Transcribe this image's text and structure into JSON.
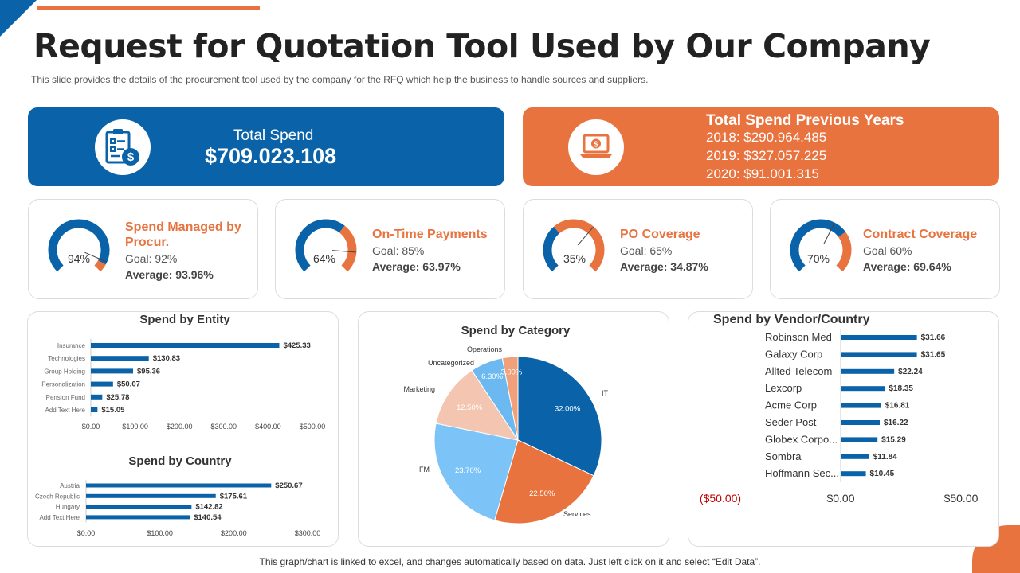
{
  "header": {
    "title": "Request for Quotation Tool Used by Our Company",
    "subtitle": "This slide provides the details of the procurement tool used by the company for the RFQ which help the business to handle sources and suppliers."
  },
  "total_spend": {
    "label": "Total Spend",
    "value": "$709.023.108",
    "icon": "clipboard-dollar-icon"
  },
  "previous_years": {
    "title": "Total Spend Previous Years",
    "lines": [
      "2018: $290.964.485",
      "2019: $327.057.225",
      "2020: $91.001.315"
    ],
    "icon": "laptop-dollar-icon"
  },
  "kpis": [
    {
      "title": "Spend Managed by Procur.",
      "pct_label": "94%",
      "value": 94,
      "goal_value": 92,
      "goal": "Goal: 92%",
      "average": "Average: 93.96%"
    },
    {
      "title": "On-Time Payments",
      "pct_label": "64%",
      "value": 64,
      "goal_value": 85,
      "goal": "Goal: 85%",
      "average": "Average: 63.97%"
    },
    {
      "title": "PO Coverage",
      "pct_label": "35%",
      "value": 35,
      "goal_value": 65,
      "goal": "Goal: 65%",
      "average": "Average: 34.87%"
    },
    {
      "title": "Contract Coverage",
      "pct_label": "70%",
      "value": 70,
      "goal_value": 60,
      "goal": "Goal 60%",
      "average": "Average: 69.64%"
    }
  ],
  "colors": {
    "blue": "#0a63a8",
    "orange": "#e8733f",
    "light_blue": "#7cc4f7",
    "peach": "#f4c5b0",
    "sky": "#6cb8f0"
  },
  "chart_data": [
    {
      "type": "bar",
      "orientation": "horizontal",
      "title": "Spend by Entity",
      "categories": [
        "Insurance",
        "Technologies",
        "Group Holding",
        "Personalization",
        "Pension Fund",
        "Add Text Here"
      ],
      "values": [
        425.33,
        130.83,
        95.36,
        50.07,
        25.78,
        15.05
      ],
      "data_labels": [
        "$425.33",
        "$130.83",
        "$95.36",
        "$50.07",
        "$25.78",
        "$15.05"
      ],
      "xlim": [
        0,
        500
      ],
      "ticks": [
        0,
        100,
        200,
        300,
        400,
        500
      ],
      "tick_labels": [
        "$0.00",
        "$100.00",
        "$200.00",
        "$300.00",
        "$400.00",
        "$500.00"
      ]
    },
    {
      "type": "bar",
      "orientation": "horizontal",
      "title": "Spend by Country",
      "categories": [
        "Austria",
        "Czech Republic",
        "Hungary",
        "Add Text Here"
      ],
      "values": [
        250.67,
        175.61,
        142.82,
        140.54
      ],
      "data_labels": [
        "$250.67",
        "$175.61",
        "$142.82",
        "$140.54"
      ],
      "xlim": [
        0,
        300
      ],
      "ticks": [
        0,
        100,
        200,
        300
      ],
      "tick_labels": [
        "$0.00",
        "$100.00",
        "$200.00",
        "$300.00"
      ]
    },
    {
      "type": "pie",
      "title": "Spend by Category",
      "labels": [
        "IT",
        "Services",
        "FM",
        "Marketing",
        "Uncategorized",
        "Operations"
      ],
      "values": [
        32.0,
        22.5,
        23.7,
        12.5,
        6.3,
        3.0
      ],
      "data_labels": [
        "32.00%",
        "22.50%",
        "23.70%",
        "12.50%",
        "6.30%",
        "3.00%"
      ],
      "colors": [
        "#0a63a8",
        "#e8733f",
        "#7cc4f7",
        "#f4c5b0",
        "#6cb8f0",
        "#f0a07a"
      ]
    },
    {
      "type": "bar",
      "orientation": "horizontal",
      "title": "Spend by Vendor/Country",
      "categories": [
        "Robinson Med",
        "Galaxy Corp",
        "Allted Telecom",
        "Lexcorp",
        "Acme Corp",
        "Seder Post",
        "Globex Corpo...",
        "Sombra",
        "Hoffmann Sec..."
      ],
      "values": [
        31.66,
        31.65,
        22.24,
        18.35,
        16.81,
        16.22,
        15.29,
        11.84,
        10.45
      ],
      "data_labels": [
        "$31.66",
        "$31.65",
        "$22.24",
        "$18.35",
        "$16.81",
        "$16.22",
        "$15.29",
        "$11.84",
        "$10.45"
      ],
      "xlim": [
        -50,
        50
      ],
      "ticks": [
        -50,
        0,
        50
      ],
      "tick_labels": [
        "($50.00)",
        "$0.00",
        "$50.00"
      ]
    }
  ],
  "footer": {
    "note": "This graph/chart is linked to excel, and changes automatically based on data. Just left click on it and select “Edit Data”."
  }
}
